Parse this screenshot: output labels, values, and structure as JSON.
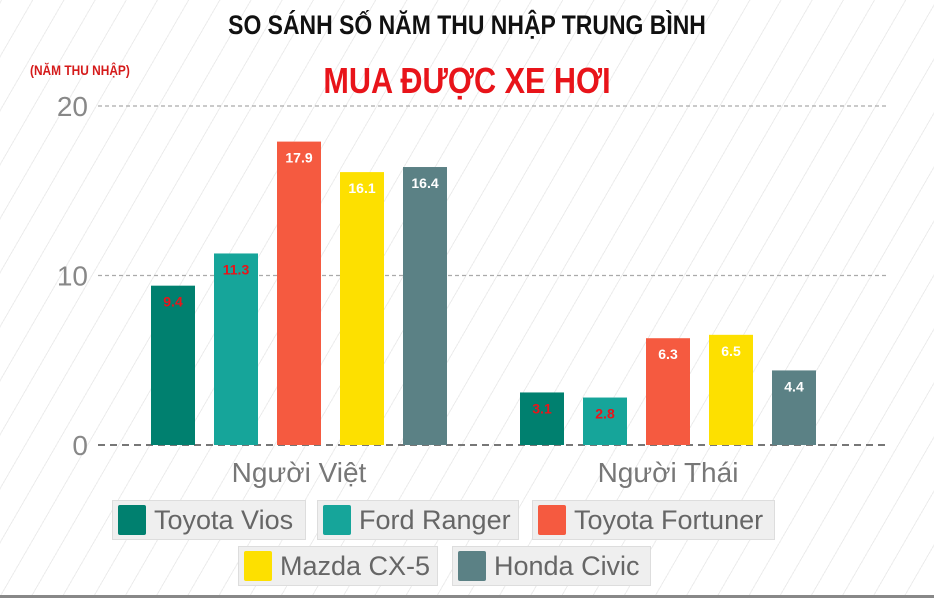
{
  "title": "SO SÁNH SỐ NĂM THU NHẬP TRUNG BÌNH",
  "subtitle": "MUA ĐƯỢC XE HƠI",
  "chart_data": {
    "type": "bar",
    "title": "SO SÁNH SỐ NĂM THU NHẬP TRUNG BÌNH MUA ĐƯỢC XE HƠI",
    "ylabel": "(NĂM THU NHẬP)",
    "xlabel": "",
    "ylim": [
      0,
      20
    ],
    "yticks": [
      "0",
      "10",
      "20"
    ],
    "grid": true,
    "legend": "bottom",
    "categories": [
      "Người Việt",
      "Người Thái"
    ],
    "series": [
      {
        "name": "Toyota Vios",
        "color": "#00806f",
        "label_color": "#e8141a",
        "values": [
          9.4,
          3.1
        ],
        "labels": [
          "9.4",
          "3.1"
        ]
      },
      {
        "name": "Ford Ranger",
        "color": "#16a59a",
        "label_color": "#e8141a",
        "values": [
          11.3,
          2.8
        ],
        "labels": [
          "11.3",
          "2.8"
        ]
      },
      {
        "name": "Toyota Fortuner",
        "color": "#f55a40",
        "label_color": "#ffffff",
        "values": [
          17.9,
          6.3
        ],
        "labels": [
          "17.9",
          "6.3"
        ]
      },
      {
        "name": "Mazda CX-5",
        "color": "#fde000",
        "label_color": "#ffffff",
        "values": [
          16.1,
          6.5
        ],
        "labels": [
          "16.1",
          "6.5"
        ]
      },
      {
        "name": "Honda Civic",
        "color": "#5b8185",
        "label_color": "#ffffff",
        "values": [
          16.4,
          4.4
        ],
        "labels": [
          "16.4",
          "4.4"
        ]
      }
    ]
  }
}
